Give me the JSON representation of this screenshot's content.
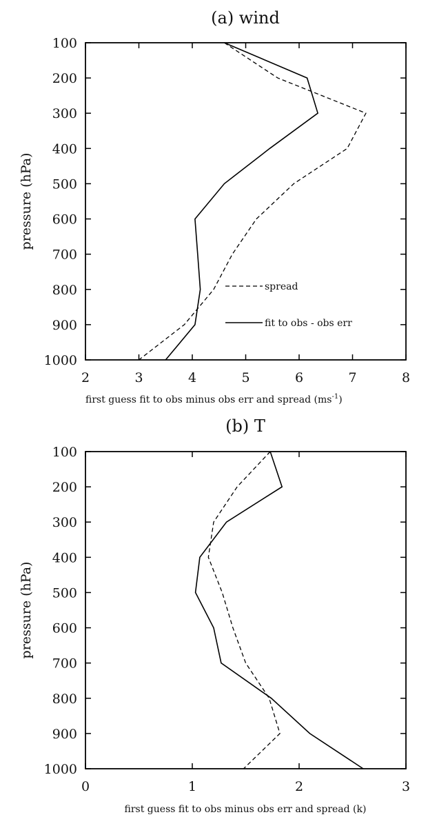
{
  "chart_data": [
    {
      "type": "line",
      "title": "(a) wind",
      "xlabel": "first guess fit to obs minus obs err and spread (ms",
      "xlabel_sup": "-1",
      "xlabel_close": ")",
      "ylabel": "pressure (hPa)",
      "xlim": [
        2,
        8
      ],
      "ylim": [
        1000,
        100
      ],
      "xticks": [
        2,
        3,
        4,
        5,
        6,
        7,
        8
      ],
      "yticks": [
        100,
        200,
        300,
        400,
        500,
        600,
        700,
        800,
        900,
        1000
      ],
      "y": [
        100,
        200,
        300,
        400,
        500,
        600,
        700,
        800,
        900,
        1000
      ],
      "legend_placement": "bottom-right",
      "series": [
        {
          "name": "spread",
          "style": "dashed",
          "values": [
            4.6,
            5.6,
            7.25,
            6.9,
            5.9,
            5.2,
            4.75,
            4.4,
            3.85,
            3.0
          ]
        },
        {
          "name": "fit to obs - obs err",
          "style": "solid",
          "values": [
            4.6,
            6.15,
            6.35,
            5.45,
            4.6,
            4.05,
            4.1,
            4.15,
            4.05,
            3.5
          ]
        }
      ]
    },
    {
      "type": "line",
      "title": "(b) T",
      "xlabel": "first guess fit to obs minus obs err and spread (k)",
      "ylabel": "pressure (hPa)",
      "xlim": [
        0,
        3
      ],
      "ylim": [
        1000,
        100
      ],
      "xticks": [
        0,
        1,
        2,
        3
      ],
      "yticks": [
        100,
        200,
        300,
        400,
        500,
        600,
        700,
        800,
        900,
        1000
      ],
      "y": [
        100,
        200,
        300,
        400,
        500,
        600,
        700,
        800,
        900,
        1000
      ],
      "series": [
        {
          "style": "dashed",
          "values": [
            1.73,
            1.42,
            1.2,
            1.15,
            1.28,
            1.38,
            1.5,
            1.72,
            1.82,
            1.48
          ]
        },
        {
          "style": "solid",
          "values": [
            1.73,
            1.84,
            1.32,
            1.07,
            1.03,
            1.2,
            1.27,
            1.74,
            2.1,
            2.6
          ]
        }
      ]
    }
  ]
}
